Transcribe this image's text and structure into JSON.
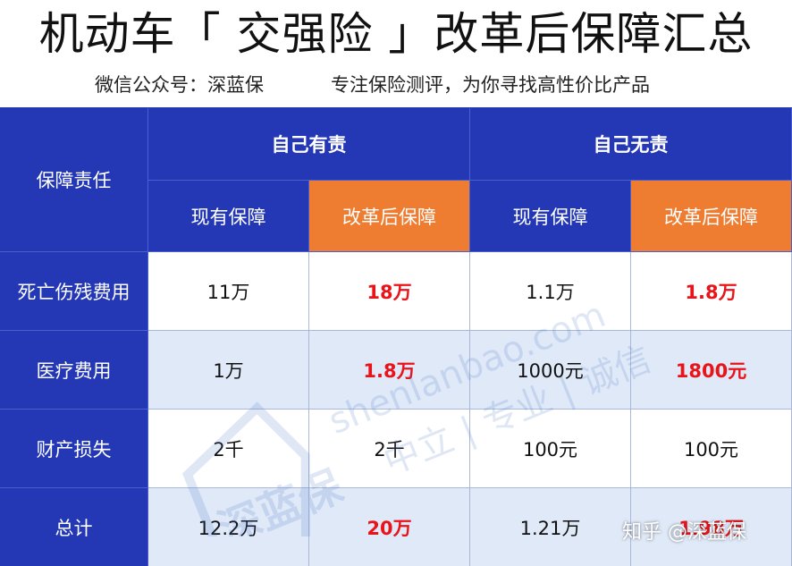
{
  "header": {
    "title": "机动车「 交强险 」改革后保障汇总",
    "account": "微信公众号：深蓝保",
    "slogan": "专注保险测评，为你寻找高性价比产品"
  },
  "table": {
    "resp_header": "保障责任",
    "groups": [
      "自己有责",
      "自己无责"
    ],
    "subheaders": [
      "现有保障",
      "改革后保障",
      "现有保障",
      "改革后保障"
    ],
    "rows": [
      {
        "label": "死亡伤残费用",
        "values": [
          "11万",
          "18万",
          "1.1万",
          "1.8万"
        ]
      },
      {
        "label": "医疗费用",
        "values": [
          "1万",
          "1.8万",
          "1000元",
          "1800元"
        ]
      },
      {
        "label": "财产损失",
        "values": [
          "2千",
          "2千",
          "100元",
          "100元"
        ]
      },
      {
        "label": "总计",
        "values": [
          "12.2万",
          "20万",
          "1.21万",
          "1.98万"
        ]
      }
    ]
  },
  "watermark": {
    "logo_text": "深蓝保",
    "site": "shenlanbao.com",
    "tags": "中立 | 专业 | 诚信"
  },
  "credit": "知乎 @深蓝保",
  "colors": {
    "header_blue": "#2438b6",
    "highlight_orange": "#ee7d31",
    "row_alt_blue": "#dfe9f8",
    "emphasis_red": "#e8141a"
  }
}
